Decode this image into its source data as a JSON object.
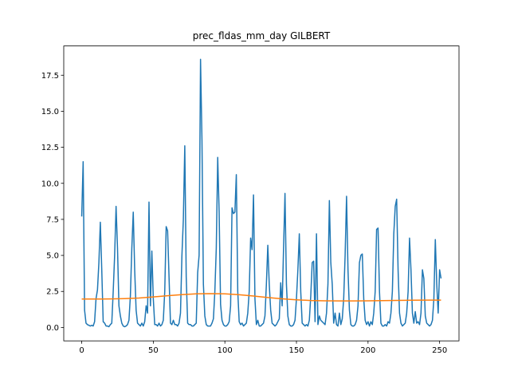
{
  "chart_data": {
    "type": "line",
    "title": "prec_fldas_mm_day GILBERT",
    "x": [
      0,
      1,
      2,
      3,
      4,
      5,
      6,
      7,
      8,
      9,
      10,
      11,
      12,
      13,
      14,
      15,
      16,
      17,
      18,
      19,
      20,
      21,
      22,
      23,
      24,
      25,
      26,
      27,
      28,
      29,
      30,
      31,
      32,
      33,
      34,
      35,
      36,
      37,
      38,
      39,
      40,
      41,
      42,
      43,
      44,
      45,
      46,
      47,
      48,
      49,
      50,
      51,
      52,
      53,
      54,
      55,
      56,
      57,
      58,
      59,
      60,
      61,
      62,
      63,
      64,
      65,
      66,
      67,
      68,
      69,
      70,
      71,
      72,
      73,
      74,
      75,
      76,
      77,
      78,
      79,
      80,
      81,
      82,
      83,
      84,
      85,
      86,
      87,
      88,
      89,
      90,
      91,
      92,
      93,
      94,
      95,
      96,
      97,
      98,
      99,
      100,
      101,
      102,
      103,
      104,
      105,
      106,
      107,
      108,
      109,
      110,
      111,
      112,
      113,
      114,
      115,
      116,
      117,
      118,
      119,
      120,
      121,
      122,
      123,
      124,
      125,
      126,
      127,
      128,
      129,
      130,
      131,
      132,
      133,
      134,
      135,
      136,
      137,
      138,
      139,
      140,
      141,
      142,
      143,
      144,
      145,
      146,
      147,
      148,
      149,
      150,
      151,
      152,
      153,
      154,
      155,
      156,
      157,
      158,
      159,
      160,
      161,
      162,
      163,
      164,
      165,
      166,
      167,
      168,
      169,
      170,
      171,
      172,
      173,
      174,
      175,
      176,
      177,
      178,
      179,
      180,
      181,
      182,
      183,
      184,
      185,
      186,
      187,
      188,
      189,
      190,
      191,
      192,
      193,
      194,
      195,
      196,
      197,
      198,
      199,
      200,
      201,
      202,
      203,
      204,
      205,
      206,
      207,
      208,
      209,
      210,
      211,
      212,
      213,
      214,
      215,
      216,
      217,
      218,
      219,
      220,
      221,
      222,
      223,
      224,
      225,
      226,
      227,
      228,
      229,
      230,
      231,
      232,
      233,
      234,
      235,
      236,
      237,
      238,
      239,
      240,
      241,
      242,
      243,
      244,
      245,
      246,
      247,
      248,
      249,
      250,
      251
    ],
    "series": [
      {
        "color": "#1f77b4",
        "values": [
          7.7,
          11.5,
          1.2,
          0.3,
          0.2,
          0.15,
          0.1,
          0.15,
          0.1,
          0.4,
          2.0,
          2.6,
          4.5,
          7.3,
          4.0,
          0.4,
          0.3,
          0.1,
          0.1,
          0.05,
          0.2,
          0.3,
          2.5,
          5.0,
          8.4,
          5.5,
          1.5,
          0.8,
          0.3,
          0.1,
          0.05,
          0.1,
          0.2,
          0.5,
          2.2,
          5.5,
          8.0,
          4.0,
          1.2,
          0.3,
          0.2,
          0.1,
          0.3,
          0.1,
          0.4,
          1.5,
          1.0,
          8.7,
          1.5,
          5.3,
          2.0,
          0.2,
          0.2,
          0.1,
          0.3,
          0.1,
          0.2,
          0.5,
          2.5,
          7.0,
          6.7,
          3.5,
          0.3,
          0.2,
          0.5,
          0.2,
          0.2,
          0.1,
          0.3,
          1.0,
          5.0,
          7.5,
          12.6,
          3.5,
          0.3,
          0.2,
          0.2,
          0.1,
          0.1,
          0.2,
          0.3,
          3.8,
          5.0,
          18.6,
          13.0,
          3.0,
          0.8,
          0.2,
          0.1,
          0.1,
          0.1,
          0.3,
          0.6,
          2.5,
          5.5,
          11.8,
          8.0,
          1.6,
          0.5,
          0.2,
          0.1,
          0.1,
          0.2,
          0.4,
          1.5,
          8.3,
          7.9,
          8.0,
          10.6,
          2.5,
          0.4,
          0.2,
          0.3,
          0.1,
          0.2,
          0.3,
          1.0,
          2.5,
          6.2,
          5.4,
          9.2,
          2.0,
          0.2,
          0.5,
          0.1,
          0.1,
          0.2,
          0.3,
          0.8,
          3.0,
          5.7,
          3.0,
          1.2,
          0.3,
          0.2,
          0.1,
          0.2,
          0.4,
          0.6,
          3.1,
          1.5,
          5.5,
          9.3,
          3.0,
          0.8,
          0.2,
          0.1,
          0.1,
          0.2,
          0.5,
          2.0,
          4.0,
          6.5,
          2.5,
          0.3,
          0.2,
          0.1,
          0.2,
          0.1,
          0.5,
          2.2,
          4.5,
          4.6,
          0.4,
          6.5,
          0.2,
          0.8,
          0.5,
          0.4,
          0.3,
          0.2,
          1.0,
          3.0,
          8.8,
          4.5,
          3.0,
          0.3,
          1.0,
          0.2,
          0.1,
          1.0,
          0.2,
          0.6,
          2.0,
          5.0,
          9.1,
          4.0,
          1.2,
          0.2,
          0.1,
          0.1,
          0.2,
          0.5,
          1.5,
          4.5,
          5.0,
          5.1,
          2.0,
          0.5,
          0.2,
          0.4,
          0.1,
          0.4,
          0.2,
          1.0,
          2.5,
          6.8,
          6.9,
          2.5,
          0.3,
          0.1,
          0.1,
          0.2,
          0.1,
          0.4,
          0.3,
          1.0,
          2.5,
          6.5,
          8.4,
          8.9,
          4.0,
          1.0,
          0.3,
          0.1,
          0.2,
          0.3,
          1.0,
          2.5,
          6.2,
          4.0,
          1.0,
          0.3,
          1.1,
          0.3,
          0.4,
          0.2,
          1.0,
          4.0,
          3.4,
          0.8,
          0.3,
          0.2,
          0.1,
          0.2,
          0.5,
          2.0,
          6.1,
          3.0,
          1.0,
          4.0,
          3.4
        ]
      },
      {
        "color": "#ff7f0e",
        "x": [
          0,
          10,
          20,
          30,
          40,
          50,
          60,
          70,
          80,
          90,
          100,
          110,
          120,
          130,
          140,
          150,
          160,
          170,
          180,
          190,
          200,
          210,
          220,
          230,
          240,
          250,
          251
        ],
        "values": [
          1.97,
          1.97,
          1.98,
          2.0,
          2.04,
          2.12,
          2.2,
          2.28,
          2.33,
          2.35,
          2.33,
          2.27,
          2.18,
          2.08,
          1.99,
          1.92,
          1.87,
          1.85,
          1.84,
          1.84,
          1.85,
          1.86,
          1.88,
          1.89,
          1.9,
          1.9,
          1.9
        ]
      }
    ],
    "xlim": [
      -12.55,
      263.55
    ],
    "xticks": [
      0,
      50,
      100,
      150,
      200,
      250
    ],
    "ylim": [
      -0.93,
      19.53
    ],
    "yticks": [
      {
        "value": 0,
        "label": "0.0"
      },
      {
        "value": 2.5,
        "label": "2.5"
      },
      {
        "value": 5,
        "label": "5.0"
      },
      {
        "value": 7.5,
        "label": "7.5"
      },
      {
        "value": 10,
        "label": "10.0"
      },
      {
        "value": 12.5,
        "label": "12.5"
      },
      {
        "value": 15,
        "label": "15.0"
      },
      {
        "value": 17.5,
        "label": "17.5"
      }
    ]
  }
}
